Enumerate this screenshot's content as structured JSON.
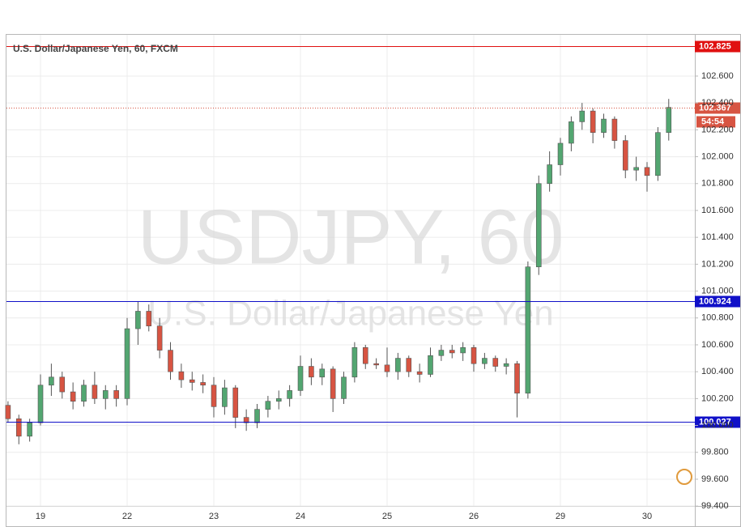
{
  "chart_data": {
    "type": "candlestick",
    "title": "U.S. Dollar/Japanese Yen, 60, FXCM",
    "watermark": [
      "USDJPY, 60",
      "U.S. Dollar/Japanese Yen"
    ],
    "categories": [
      null,
      null,
      null,
      "19",
      null,
      null,
      null,
      null,
      null,
      null,
      null,
      "22",
      null,
      null,
      null,
      null,
      null,
      null,
      null,
      "23",
      null,
      null,
      null,
      null,
      null,
      null,
      null,
      "24",
      null,
      null,
      null,
      null,
      null,
      null,
      null,
      "25",
      null,
      null,
      null,
      null,
      null,
      null,
      null,
      "26",
      null,
      null,
      null,
      null,
      null,
      null,
      null,
      "29",
      null,
      null,
      null,
      null,
      null,
      null,
      null,
      "30",
      null,
      null
    ],
    "open": [
      100.15,
      100.05,
      99.92,
      100.02,
      100.3,
      100.36,
      100.25,
      100.18,
      100.3,
      100.2,
      100.26,
      100.2,
      100.72,
      100.85,
      100.74,
      100.56,
      100.4,
      100.34,
      100.32,
      100.3,
      100.14,
      100.28,
      100.06,
      100.02,
      100.12,
      100.18,
      100.2,
      100.26,
      100.44,
      100.36,
      100.42,
      100.2,
      100.36,
      100.58,
      100.46,
      100.45,
      100.4,
      100.5,
      100.4,
      100.38,
      100.52,
      100.56,
      100.54,
      100.58,
      100.46,
      100.5,
      100.44,
      100.46,
      100.24,
      101.18,
      101.8,
      101.94,
      102.1,
      102.26,
      102.34,
      102.18,
      102.28,
      102.12,
      101.9,
      101.92,
      101.86,
      102.18
    ],
    "high": [
      100.18,
      100.08,
      100.05,
      100.38,
      100.46,
      100.4,
      100.32,
      100.34,
      100.4,
      100.3,
      100.3,
      100.8,
      100.92,
      100.9,
      100.8,
      100.62,
      100.46,
      100.4,
      100.38,
      100.36,
      100.34,
      100.3,
      100.12,
      100.16,
      100.22,
      100.26,
      100.3,
      100.52,
      100.5,
      100.46,
      100.44,
      100.4,
      100.62,
      100.6,
      100.5,
      100.58,
      100.54,
      100.52,
      100.46,
      100.58,
      100.6,
      100.6,
      100.62,
      100.6,
      100.54,
      100.52,
      100.5,
      100.48,
      101.22,
      101.86,
      102.04,
      102.14,
      102.3,
      102.4,
      102.36,
      102.32,
      102.3,
      102.16,
      102.0,
      101.96,
      102.22,
      102.43
    ],
    "low": [
      100.02,
      99.86,
      99.88,
      100.0,
      100.22,
      100.2,
      100.12,
      100.14,
      100.16,
      100.12,
      100.14,
      100.15,
      100.6,
      100.7,
      100.5,
      100.34,
      100.28,
      100.26,
      100.24,
      100.06,
      100.08,
      99.98,
      99.96,
      99.98,
      100.06,
      100.12,
      100.14,
      100.22,
      100.3,
      100.3,
      100.1,
      100.16,
      100.32,
      100.42,
      100.42,
      100.36,
      100.34,
      100.36,
      100.32,
      100.36,
      100.48,
      100.5,
      100.48,
      100.4,
      100.42,
      100.4,
      100.38,
      100.06,
      100.2,
      101.12,
      101.74,
      101.86,
      102.04,
      102.2,
      102.1,
      102.14,
      102.06,
      101.84,
      101.82,
      101.74,
      101.82,
      102.12
    ],
    "close": [
      100.05,
      99.92,
      100.02,
      100.3,
      100.36,
      100.25,
      100.18,
      100.3,
      100.2,
      100.26,
      100.2,
      100.72,
      100.85,
      100.74,
      100.56,
      100.4,
      100.34,
      100.32,
      100.3,
      100.14,
      100.28,
      100.06,
      100.02,
      100.12,
      100.18,
      100.2,
      100.26,
      100.44,
      100.36,
      100.42,
      100.2,
      100.36,
      100.58,
      100.46,
      100.45,
      100.4,
      100.5,
      100.4,
      100.38,
      100.52,
      100.56,
      100.54,
      100.58,
      100.46,
      100.5,
      100.44,
      100.46,
      100.24,
      101.18,
      101.8,
      101.94,
      102.1,
      102.26,
      102.34,
      102.18,
      102.28,
      102.12,
      101.9,
      101.92,
      101.86,
      102.18,
      102.367
    ],
    "up_color": "#53a671",
    "down_color": "#d75442",
    "ylim": [
      99.401,
      102.907
    ],
    "yticks": [
      {
        "value": 99.4,
        "label": "99.400"
      },
      {
        "value": 99.6,
        "label": "99.600"
      },
      {
        "value": 99.8,
        "label": "99.800"
      },
      {
        "value": 100.0,
        "label": "100.000"
      },
      {
        "value": 100.2,
        "label": "100.200"
      },
      {
        "value": 100.4,
        "label": "100.400"
      },
      {
        "value": 100.6,
        "label": "100.600"
      },
      {
        "value": 100.8,
        "label": "100.800"
      },
      {
        "value": 101.0,
        "label": "101.000"
      },
      {
        "value": 101.2,
        "label": "101.200"
      },
      {
        "value": 101.4,
        "label": "101.400"
      },
      {
        "value": 101.6,
        "label": "101.600"
      },
      {
        "value": 101.8,
        "label": "101.800"
      },
      {
        "value": 102.0,
        "label": "102.000"
      },
      {
        "value": 102.2,
        "label": "102.200"
      },
      {
        "value": 102.4,
        "label": "102.400"
      },
      {
        "value": 102.6,
        "label": "102.600"
      }
    ],
    "grid": true,
    "levels": [
      {
        "value": 102.825,
        "color": "#e01010"
      },
      {
        "value": 100.924,
        "color": "#1010c8"
      },
      {
        "value": 100.027,
        "color": "#1010c8"
      }
    ],
    "last_price": {
      "value": 102.367,
      "color": "#d75442",
      "countdown": "54:54"
    }
  }
}
